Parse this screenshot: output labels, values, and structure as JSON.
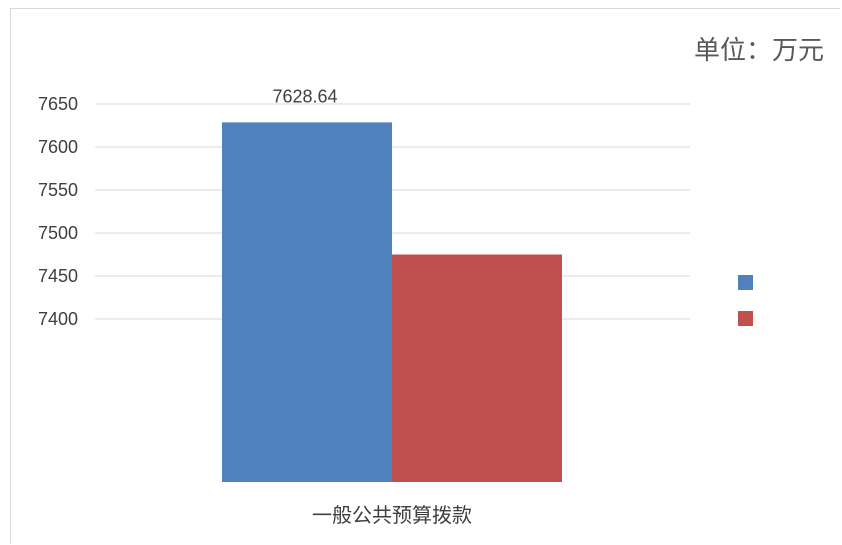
{
  "unit_label": "单位：万元",
  "chart_data": {
    "type": "bar",
    "categories": [
      "一般公共预算拨款"
    ],
    "series": [
      {
        "values": [
          7628.64
        ],
        "color": "#4f81bd"
      },
      {
        "values": [
          7475
        ],
        "color": "#c0504d"
      }
    ],
    "data_labels": [
      "7628.64",
      ""
    ],
    "yticks": [
      7650,
      7600,
      7550,
      7500,
      7450,
      7400
    ],
    "ylim": [
      7400,
      7650
    ],
    "grid": true,
    "legend": "right"
  }
}
